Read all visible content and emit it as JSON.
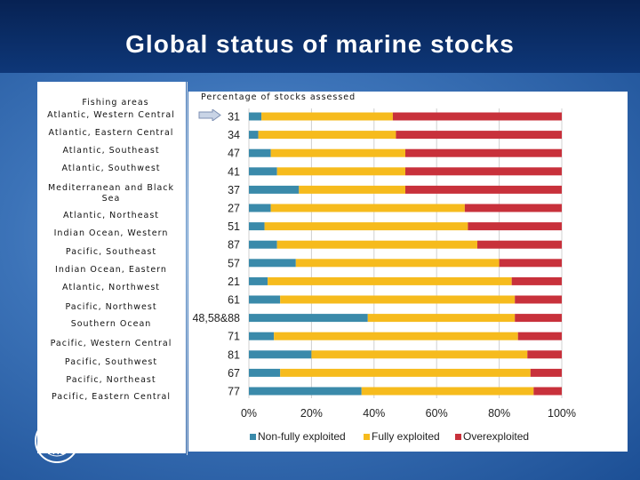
{
  "slide": {
    "title": "Global status of marine stocks",
    "chart_subtitle": "Percentage of stocks assessed",
    "areas_header": "Fishing areas",
    "logo_text": "FAO"
  },
  "fishing_areas": [
    "Atlantic, Western Central",
    "Atlantic, Eastern Central",
    "Atlantic, Southeast",
    "Atlantic, Southwest",
    "Mediterranean and Black Sea",
    "Atlantic, Northeast",
    "Indian Ocean, Western",
    "Pacific, Southeast",
    "Indian Ocean, Eastern",
    "Atlantic, Northwest",
    "Pacific, Northwest",
    "Southern Ocean",
    "Pacific, Western Central",
    "Pacific, Southwest",
    "Pacific, Northeast",
    "Pacific, Eastern Central"
  ],
  "colors": {
    "non_fully": "#3a8aaa",
    "fully": "#f6bb1d",
    "over": "#c8313b",
    "grid": "#d0d0d0",
    "arrow": "#8aa0c8"
  },
  "chart_data": {
    "type": "bar",
    "orientation": "horizontal-stacked-100",
    "categories": [
      "31",
      "34",
      "47",
      "41",
      "37",
      "27",
      "51",
      "87",
      "57",
      "21",
      "61",
      "48,58&88",
      "71",
      "81",
      "67",
      "77"
    ],
    "series": [
      {
        "name": "Non-fully exploited",
        "values": [
          4,
          3,
          7,
          9,
          16,
          7,
          5,
          9,
          15,
          6,
          10,
          38,
          8,
          20,
          10,
          36
        ]
      },
      {
        "name": "Fully exploited",
        "values": [
          42,
          44,
          43,
          41,
          34,
          62,
          65,
          64,
          65,
          78,
          75,
          47,
          78,
          69,
          80,
          55
        ]
      },
      {
        "name": "Overexploited",
        "values": [
          54,
          53,
          50,
          50,
          50,
          31,
          30,
          27,
          20,
          16,
          15,
          15,
          14,
          11,
          10,
          9
        ]
      }
    ],
    "x_ticks": [
      "0%",
      "20%",
      "40%",
      "60%",
      "80%",
      "100%"
    ],
    "xlim": [
      0,
      100
    ],
    "grid": true,
    "legend_position": "bottom"
  }
}
